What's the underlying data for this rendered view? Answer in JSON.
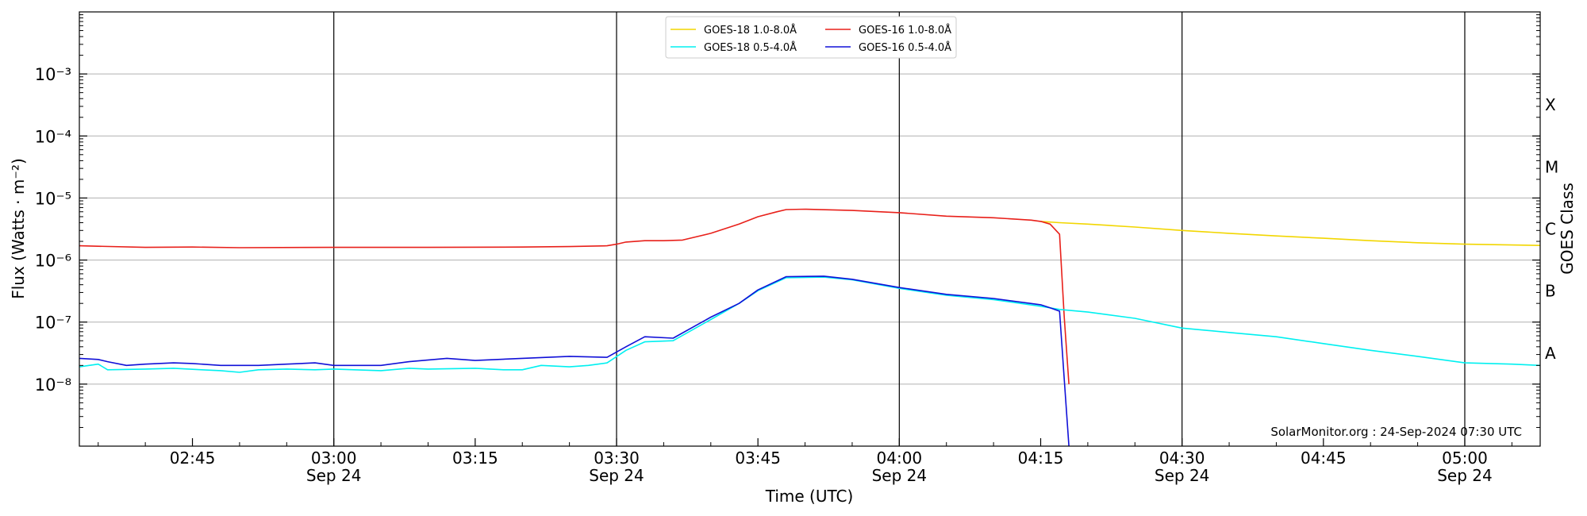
{
  "chart_data": {
    "type": "line",
    "title": "",
    "xlabel": "Time (UTC)",
    "ylabel": "Flux (Watts · m⁻²)",
    "y2label": "GOES Class",
    "yscale": "log",
    "ylim": [
      1e-09,
      0.01
    ],
    "xlim": [
      "02:33",
      "05:08"
    ],
    "grid": "horizontal",
    "legend_position": "top-center",
    "credit": "SolarMonitor.org : 24-Sep-2024 07:30 UTC",
    "y_ticks": [
      {
        "value": 1e-08,
        "label": "10⁻⁸"
      },
      {
        "value": 1e-07,
        "label": "10⁻⁷"
      },
      {
        "value": 1e-06,
        "label": "10⁻⁶"
      },
      {
        "value": 1e-05,
        "label": "10⁻⁵"
      },
      {
        "value": 0.0001,
        "label": "10⁻⁴"
      },
      {
        "value": 0.001,
        "label": "10⁻³"
      }
    ],
    "x_ticks": [
      {
        "time": "02:45",
        "label": "02:45",
        "sublabel": ""
      },
      {
        "time": "03:00",
        "label": "03:00",
        "sublabel": "Sep 24"
      },
      {
        "time": "03:15",
        "label": "03:15",
        "sublabel": ""
      },
      {
        "time": "03:30",
        "label": "03:30",
        "sublabel": "Sep 24"
      },
      {
        "time": "03:45",
        "label": "03:45",
        "sublabel": ""
      },
      {
        "time": "04:00",
        "label": "04:00",
        "sublabel": "Sep 24"
      },
      {
        "time": "04:15",
        "label": "04:15",
        "sublabel": ""
      },
      {
        "time": "04:30",
        "label": "04:30",
        "sublabel": "Sep 24"
      },
      {
        "time": "04:45",
        "label": "04:45",
        "sublabel": ""
      },
      {
        "time": "05:00",
        "label": "05:00",
        "sublabel": "Sep 24"
      }
    ],
    "vertical_lines": [
      "03:00",
      "03:30",
      "04:00",
      "04:30",
      "05:00"
    ],
    "goes_classes": [
      {
        "label": "A",
        "value": 3.16e-08
      },
      {
        "label": "B",
        "value": 3.16e-07
      },
      {
        "label": "C",
        "value": 3.16e-06
      },
      {
        "label": "M",
        "value": 3.16e-05
      },
      {
        "label": "X",
        "value": 0.000316
      }
    ],
    "series": [
      {
        "name": "GOES-18 1.0-8.0Å",
        "color": "#f2d600",
        "points": [
          [
            "04:15",
            4.2e-06
          ],
          [
            "04:17",
            4e-06
          ],
          [
            "04:20",
            3.8e-06
          ],
          [
            "04:25",
            3.4e-06
          ],
          [
            "04:30",
            3e-06
          ],
          [
            "04:35",
            2.7e-06
          ],
          [
            "04:40",
            2.45e-06
          ],
          [
            "04:45",
            2.25e-06
          ],
          [
            "04:50",
            2.05e-06
          ],
          [
            "04:55",
            1.9e-06
          ],
          [
            "05:00",
            1.8e-06
          ],
          [
            "05:05",
            1.75e-06
          ],
          [
            "05:08",
            1.72e-06
          ]
        ]
      },
      {
        "name": "GOES-16 1.0-8.0Å",
        "color": "#e8201a",
        "points": [
          [
            "02:33",
            1.7e-06
          ],
          [
            "02:40",
            1.6e-06
          ],
          [
            "02:45",
            1.62e-06
          ],
          [
            "02:50",
            1.58e-06
          ],
          [
            "03:00",
            1.6e-06
          ],
          [
            "03:10",
            1.6e-06
          ],
          [
            "03:20",
            1.62e-06
          ],
          [
            "03:25",
            1.65e-06
          ],
          [
            "03:29",
            1.7e-06
          ],
          [
            "03:30",
            1.8e-06
          ],
          [
            "03:31",
            1.95e-06
          ],
          [
            "03:33",
            2.05e-06
          ],
          [
            "03:35",
            2.05e-06
          ],
          [
            "03:37",
            2.1e-06
          ],
          [
            "03:40",
            2.7e-06
          ],
          [
            "03:43",
            3.8e-06
          ],
          [
            "03:45",
            5e-06
          ],
          [
            "03:47",
            6e-06
          ],
          [
            "03:48",
            6.5e-06
          ],
          [
            "03:50",
            6.6e-06
          ],
          [
            "03:55",
            6.3e-06
          ],
          [
            "04:00",
            5.8e-06
          ],
          [
            "04:05",
            5.1e-06
          ],
          [
            "04:10",
            4.8e-06
          ],
          [
            "04:12",
            4.6e-06
          ],
          [
            "04:14",
            4.4e-06
          ],
          [
            "04:15",
            4.2e-06
          ],
          [
            "04:16",
            3.8e-06
          ],
          [
            "04:17",
            2.6e-06
          ],
          [
            "04:17.5",
            1.2e-07
          ],
          [
            "04:18",
            1e-08
          ]
        ]
      },
      {
        "name": "GOES-18 0.5-4.0Å",
        "color": "#00f0f0",
        "points": [
          [
            "02:33",
            1.9e-08
          ],
          [
            "02:35",
            2.1e-08
          ],
          [
            "02:36",
            1.7e-08
          ],
          [
            "02:40",
            1.75e-08
          ],
          [
            "02:43",
            1.8e-08
          ],
          [
            "02:46",
            1.7e-08
          ],
          [
            "02:48",
            1.65e-08
          ],
          [
            "02:50",
            1.55e-08
          ],
          [
            "02:52",
            1.7e-08
          ],
          [
            "02:55",
            1.75e-08
          ],
          [
            "02:58",
            1.7e-08
          ],
          [
            "03:00",
            1.75e-08
          ],
          [
            "03:05",
            1.65e-08
          ],
          [
            "03:08",
            1.8e-08
          ],
          [
            "03:10",
            1.75e-08
          ],
          [
            "03:15",
            1.8e-08
          ],
          [
            "03:18",
            1.7e-08
          ],
          [
            "03:20",
            1.7e-08
          ],
          [
            "03:22",
            2e-08
          ],
          [
            "03:25",
            1.9e-08
          ],
          [
            "03:27",
            2e-08
          ],
          [
            "03:29",
            2.2e-08
          ],
          [
            "03:31",
            3.5e-08
          ],
          [
            "03:33",
            4.8e-08
          ],
          [
            "03:36",
            5e-08
          ],
          [
            "03:40",
            1.1e-07
          ],
          [
            "03:43",
            2e-07
          ],
          [
            "03:45",
            3.2e-07
          ],
          [
            "03:48",
            5.2e-07
          ],
          [
            "03:52",
            5.3e-07
          ],
          [
            "03:55",
            4.8e-07
          ],
          [
            "04:00",
            3.5e-07
          ],
          [
            "04:05",
            2.7e-07
          ],
          [
            "04:10",
            2.3e-07
          ],
          [
            "04:15",
            1.8e-07
          ],
          [
            "04:17",
            1.6e-07
          ],
          [
            "04:20",
            1.45e-07
          ],
          [
            "04:25",
            1.15e-07
          ],
          [
            "04:30",
            8e-08
          ],
          [
            "04:35",
            6.8e-08
          ],
          [
            "04:40",
            5.8e-08
          ],
          [
            "04:45",
            4.5e-08
          ],
          [
            "04:50",
            3.5e-08
          ],
          [
            "04:55",
            2.8e-08
          ],
          [
            "05:00",
            2.2e-08
          ],
          [
            "05:05",
            2.1e-08
          ],
          [
            "05:08",
            2e-08
          ]
        ]
      },
      {
        "name": "GOES-16 0.5-4.0Å",
        "color": "#1010d8",
        "points": [
          [
            "02:33",
            2.6e-08
          ],
          [
            "02:35",
            2.5e-08
          ],
          [
            "02:36",
            2.3e-08
          ],
          [
            "02:38",
            2e-08
          ],
          [
            "02:40",
            2.1e-08
          ],
          [
            "02:43",
            2.2e-08
          ],
          [
            "02:45",
            2.15e-08
          ],
          [
            "02:48",
            2e-08
          ],
          [
            "02:52",
            2e-08
          ],
          [
            "02:55",
            2.1e-08
          ],
          [
            "02:58",
            2.2e-08
          ],
          [
            "03:00",
            2e-08
          ],
          [
            "03:05",
            2e-08
          ],
          [
            "03:08",
            2.3e-08
          ],
          [
            "03:12",
            2.6e-08
          ],
          [
            "03:15",
            2.4e-08
          ],
          [
            "03:20",
            2.6e-08
          ],
          [
            "03:25",
            2.8e-08
          ],
          [
            "03:29",
            2.7e-08
          ],
          [
            "03:31",
            4e-08
          ],
          [
            "03:33",
            5.8e-08
          ],
          [
            "03:36",
            5.5e-08
          ],
          [
            "03:40",
            1.2e-07
          ],
          [
            "03:43",
            2e-07
          ],
          [
            "03:45",
            3.3e-07
          ],
          [
            "03:48",
            5.4e-07
          ],
          [
            "03:52",
            5.5e-07
          ],
          [
            "03:55",
            4.9e-07
          ],
          [
            "04:00",
            3.6e-07
          ],
          [
            "04:05",
            2.8e-07
          ],
          [
            "04:10",
            2.4e-07
          ],
          [
            "04:15",
            1.9e-07
          ],
          [
            "04:16",
            1.7e-07
          ],
          [
            "04:17",
            1.5e-07
          ],
          [
            "04:17.5",
            1.2e-08
          ],
          [
            "04:18",
            1e-09
          ]
        ]
      }
    ]
  }
}
